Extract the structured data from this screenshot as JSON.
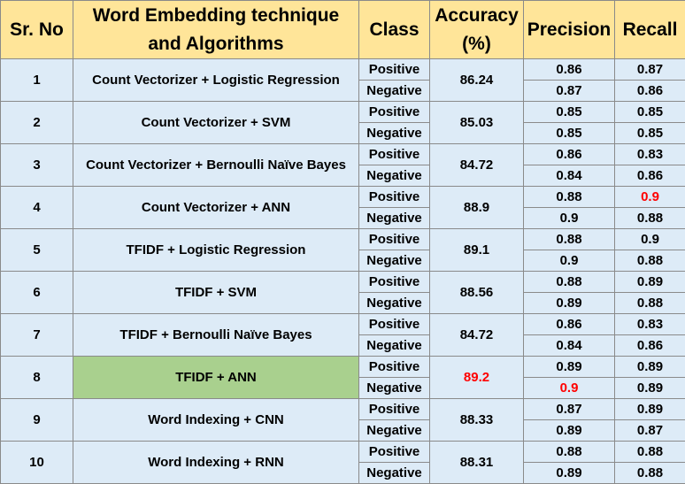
{
  "headers": {
    "sr_no": "Sr. No",
    "technique_line1": "Word Embedding technique",
    "technique_line2": "and Algorithms",
    "class": "Class",
    "accuracy_line1": "Accuracy",
    "accuracy_line2": "(%)",
    "precision": "Precision",
    "recall": "Recall"
  },
  "rows": [
    {
      "sr": "1",
      "technique": "Count Vectorizer + Logistic Regression",
      "accuracy": "86.24",
      "pos": {
        "class": "Positive",
        "precision": "0.86",
        "recall": "0.87"
      },
      "neg": {
        "class": "Negative",
        "precision": "0.87",
        "recall": "0.86"
      }
    },
    {
      "sr": "2",
      "technique": "Count Vectorizer + SVM",
      "accuracy": "85.03",
      "pos": {
        "class": "Positive",
        "precision": "0.85",
        "recall": "0.85"
      },
      "neg": {
        "class": "Negative",
        "precision": "0.85",
        "recall": "0.85"
      }
    },
    {
      "sr": "3",
      "technique": "Count Vectorizer + Bernoulli Naïve Bayes",
      "accuracy": "84.72",
      "pos": {
        "class": "Positive",
        "precision": "0.86",
        "recall": "0.83"
      },
      "neg": {
        "class": "Negative",
        "precision": "0.84",
        "recall": "0.86"
      }
    },
    {
      "sr": "4",
      "technique": "Count Vectorizer + ANN",
      "accuracy": "88.9",
      "pos": {
        "class": "Positive",
        "precision": "0.88",
        "recall": "0.9"
      },
      "neg": {
        "class": "Negative",
        "precision": "0.9",
        "recall": "0.88"
      }
    },
    {
      "sr": "5",
      "technique": "TFIDF + Logistic Regression",
      "accuracy": "89.1",
      "pos": {
        "class": "Positive",
        "precision": "0.88",
        "recall": "0.9"
      },
      "neg": {
        "class": "Negative",
        "precision": "0.9",
        "recall": "0.88"
      }
    },
    {
      "sr": "6",
      "technique": "TFIDF + SVM",
      "accuracy": "88.56",
      "pos": {
        "class": "Positive",
        "precision": "0.88",
        "recall": "0.89"
      },
      "neg": {
        "class": "Negative",
        "precision": "0.89",
        "recall": "0.88"
      }
    },
    {
      "sr": "7",
      "technique": "TFIDF + Bernoulli Naïve Bayes",
      "accuracy": "84.72",
      "pos": {
        "class": "Positive",
        "precision": "0.86",
        "recall": "0.83"
      },
      "neg": {
        "class": "Negative",
        "precision": "0.84",
        "recall": "0.86"
      }
    },
    {
      "sr": "8",
      "technique": "TFIDF + ANN",
      "accuracy": "89.2",
      "pos": {
        "class": "Positive",
        "precision": "0.89",
        "recall": "0.89"
      },
      "neg": {
        "class": "Negative",
        "precision": "0.9",
        "recall": "0.89"
      }
    },
    {
      "sr": "9",
      "technique": "Word Indexing + CNN",
      "accuracy": "88.33",
      "pos": {
        "class": "Positive",
        "precision": "0.87",
        "recall": "0.89"
      },
      "neg": {
        "class": "Negative",
        "precision": "0.89",
        "recall": "0.87"
      }
    },
    {
      "sr": "10",
      "technique": "Word Indexing + RNN",
      "accuracy": "88.31",
      "pos": {
        "class": "Positive",
        "precision": "0.88",
        "recall": "0.88"
      },
      "neg": {
        "class": "Negative",
        "precision": "0.89",
        "recall": "0.88"
      }
    }
  ],
  "colors": {
    "header_bg": "#ffe599",
    "body_bg": "#ddebf7",
    "highlight_bg": "#a9d08e",
    "best_value_text": "#ff0000"
  }
}
